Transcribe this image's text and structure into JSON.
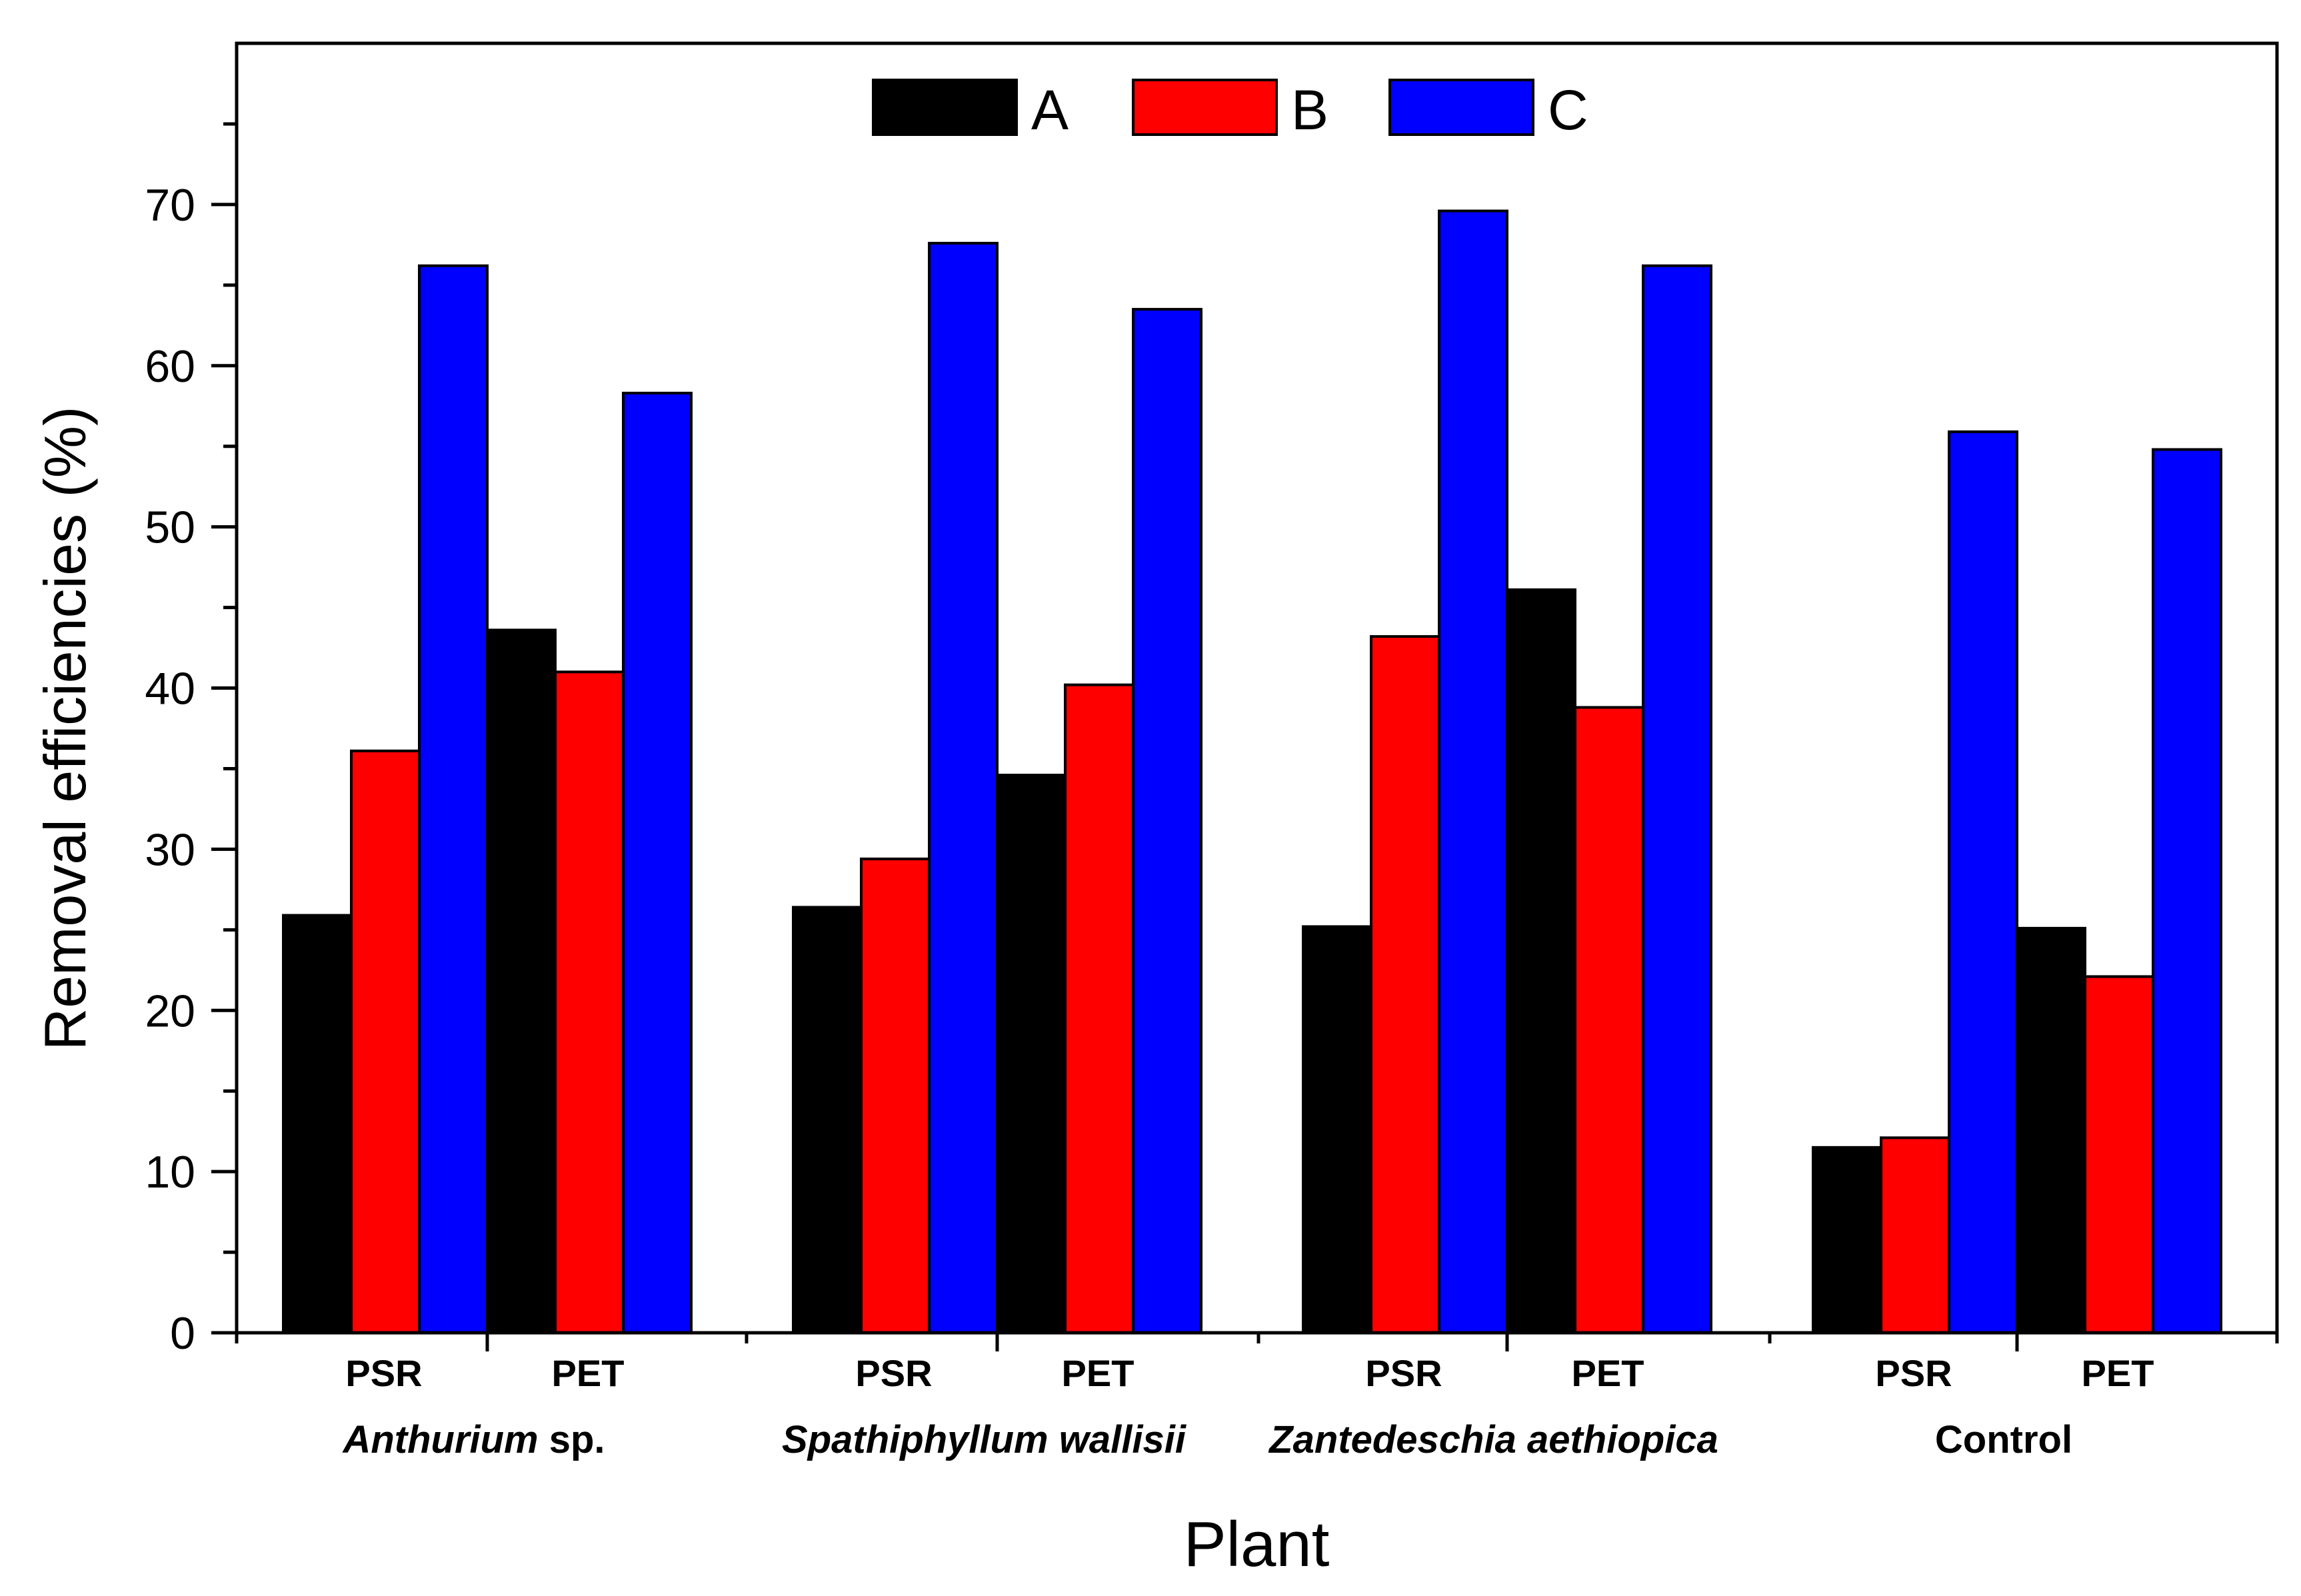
{
  "chart_data": {
    "type": "bar",
    "title": "",
    "xlabel": "Plant",
    "ylabel": "Removal efficiencies (%)",
    "ylim": [
      0,
      80
    ],
    "yticks": [
      0,
      10,
      20,
      30,
      40,
      50,
      60,
      70
    ],
    "legend": {
      "placement": "top-center",
      "entries": [
        "A",
        "B",
        "C"
      ]
    },
    "colors": {
      "A": "#000000",
      "B": "#ff0000",
      "C": "#0000ff"
    },
    "series_names": [
      "A",
      "B",
      "C"
    ],
    "groups": [
      {
        "label_parts": [
          {
            "text": "Anthurium",
            "italic": true
          },
          {
            "text": " sp.",
            "italic": false
          }
        ],
        "subgroups": [
          {
            "label": "PSR",
            "values": [
              25.9,
              36.1,
              66.2
            ]
          },
          {
            "label": "PET",
            "values": [
              43.6,
              41.0,
              58.3
            ]
          }
        ]
      },
      {
        "label_parts": [
          {
            "text": "Spathiphyllum wallisii",
            "italic": true
          }
        ],
        "subgroups": [
          {
            "label": "PSR",
            "values": [
              26.4,
              29.4,
              67.6
            ]
          },
          {
            "label": "PET",
            "values": [
              34.6,
              40.2,
              63.5
            ]
          }
        ]
      },
      {
        "label_parts": [
          {
            "text": "Zantedeschia aethiopica",
            "italic": true
          }
        ],
        "subgroups": [
          {
            "label": "PSR",
            "values": [
              25.2,
              43.2,
              69.6
            ]
          },
          {
            "label": "PET",
            "values": [
              46.1,
              38.8,
              66.2
            ]
          }
        ]
      },
      {
        "label_parts": [
          {
            "text": "Control",
            "italic": false
          }
        ],
        "subgroups": [
          {
            "label": "PSR",
            "values": [
              11.5,
              12.1,
              55.9
            ]
          },
          {
            "label": "PET",
            "values": [
              25.1,
              22.1,
              54.8
            ]
          }
        ]
      }
    ]
  }
}
